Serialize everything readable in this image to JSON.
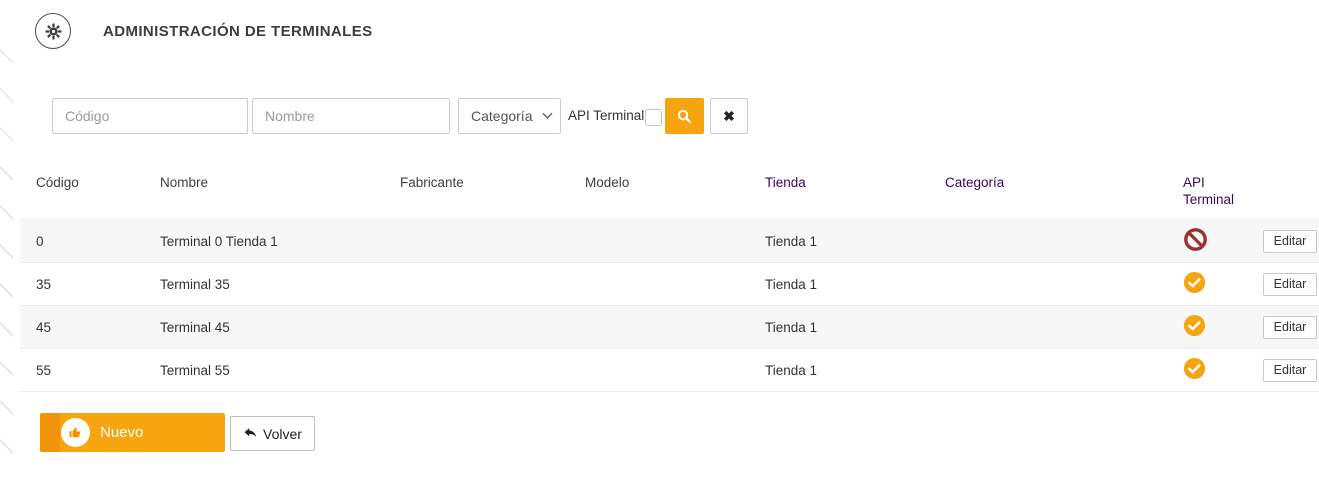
{
  "header": {
    "title": "ADMINISTRACIÓN DE TERMINALES",
    "icon": "gear-icon"
  },
  "filters": {
    "codigo_placeholder": "Código",
    "nombre_placeholder": "Nombre",
    "categoria_selected": "Categoría",
    "api_terminal_label": "API Terminal",
    "api_terminal_checked": false,
    "search_icon": "magnifier-icon",
    "clear_icon_glyph": "✖"
  },
  "table": {
    "columns": [
      {
        "label": "Código",
        "link": false
      },
      {
        "label": "Nombre",
        "link": false
      },
      {
        "label": "Fabricante",
        "link": false
      },
      {
        "label": "Modelo",
        "link": false
      },
      {
        "label": "Tienda",
        "link": true
      },
      {
        "label": "Categoría",
        "link": true
      },
      {
        "label": "API Terminal",
        "link": true
      },
      {
        "label": "",
        "link": false
      }
    ],
    "edit_label": "Editar",
    "rows": [
      {
        "codigo": "0",
        "nombre": "Terminal 0 Tienda 1",
        "fabricante": "",
        "modelo": "",
        "tienda": "Tienda 1",
        "categoria": "",
        "api_terminal": "blocked"
      },
      {
        "codigo": "35",
        "nombre": "Terminal 35",
        "fabricante": "",
        "modelo": "",
        "tienda": "Tienda 1",
        "categoria": "",
        "api_terminal": "enabled"
      },
      {
        "codigo": "45",
        "nombre": "Terminal 45",
        "fabricante": "",
        "modelo": "",
        "tienda": "Tienda 1",
        "categoria": "",
        "api_terminal": "enabled"
      },
      {
        "codigo": "55",
        "nombre": "Terminal 55",
        "fabricante": "",
        "modelo": "",
        "tienda": "Tienda 1",
        "categoria": "",
        "api_terminal": "enabled"
      }
    ]
  },
  "footer": {
    "nuevo_label": "Nuevo",
    "nuevo_icon": "thumbs-up-icon",
    "volver_label": "Volver",
    "volver_icon": "reply-arrow-icon"
  },
  "colors": {
    "accent": "#F6A50F",
    "accent_dark": "#F2920D",
    "blocked_red": "#993333",
    "header_link_purple": "#330866"
  }
}
